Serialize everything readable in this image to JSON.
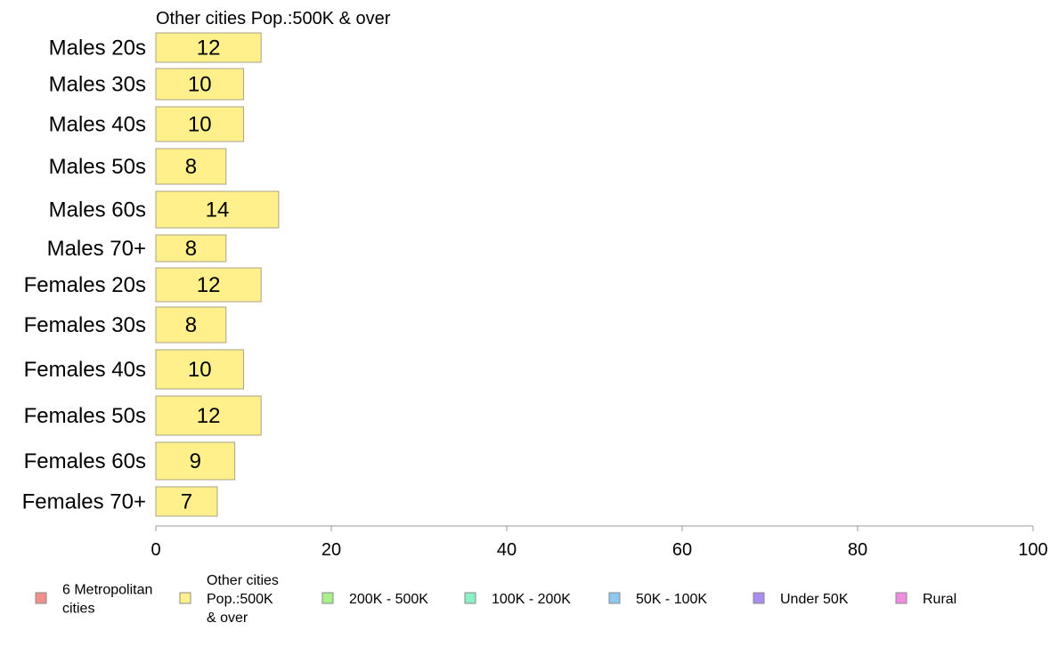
{
  "chart_data": {
    "type": "bar",
    "orientation": "horizontal",
    "title": "Other cities Pop.:500K & over",
    "categories": [
      "Males 20s",
      "Males 30s",
      "Males 40s",
      "Males 50s",
      "Males 60s",
      "Males 70+",
      "Females 20s",
      "Females 30s",
      "Females 40s",
      "Females 50s",
      "Females 60s",
      "Females 70+"
    ],
    "values": [
      12,
      10,
      10,
      8,
      14,
      8,
      12,
      8,
      10,
      12,
      9,
      7
    ],
    "value_labels": [
      "12",
      "10",
      "10",
      "8",
      "14",
      "8",
      "12",
      "8",
      "10",
      "12",
      "9",
      "7"
    ],
    "xlim": [
      0,
      100
    ],
    "xticks": [
      0,
      20,
      40,
      60,
      80,
      100
    ],
    "bar_color": "#fff08c",
    "grid": false,
    "legend_position": "bottom",
    "legend": [
      {
        "lines": [
          "6 Metropolitan",
          " cities"
        ],
        "color": "#f4908a"
      },
      {
        "lines": [
          "Other cities",
          "Pop.:500K",
          " & over"
        ],
        "color": "#fff08c"
      },
      {
        "lines": [
          "200K - 500K"
        ],
        "color": "#a8f08c"
      },
      {
        "lines": [
          "100K - 200K"
        ],
        "color": "#8cf0c8"
      },
      {
        "lines": [
          "50K - 100K"
        ],
        "color": "#8cc8f0"
      },
      {
        "lines": [
          "Under 50K"
        ],
        "color": "#a88cf0"
      },
      {
        "lines": [
          "Rural"
        ],
        "color": "#f08ce0"
      }
    ]
  }
}
